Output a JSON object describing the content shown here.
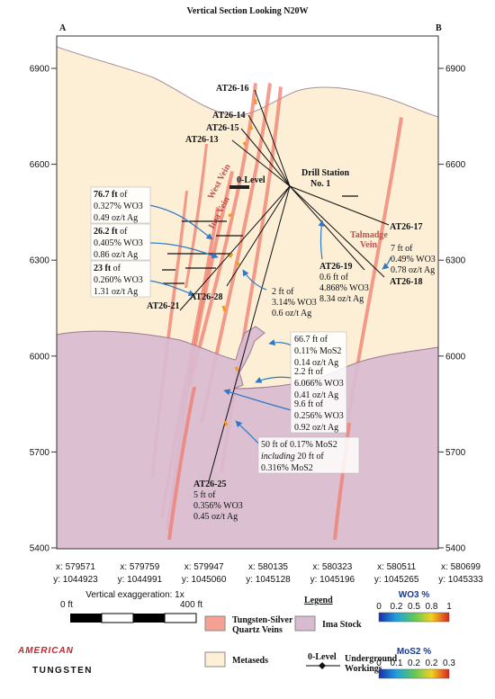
{
  "title": "Vertical Section Looking N20W",
  "section_ends": {
    "left": "A",
    "right": "B"
  },
  "elevation_ticks": [
    6900,
    6600,
    6300,
    6000,
    5700,
    5400
  ],
  "coordinates": [
    {
      "x": "x: 579571",
      "y": "y: 1044923"
    },
    {
      "x": "x: 579759",
      "y": "y: 1044991"
    },
    {
      "x": "x: 579947",
      "y": "y: 1045060"
    },
    {
      "x": "x: 580135",
      "y": "y: 1045128"
    },
    {
      "x": "x: 580323",
      "y": "y: 1045196"
    },
    {
      "x": "x: 580511",
      "y": "y: 1045265"
    },
    {
      "x": "x: 580699",
      "y": "y: 1045333"
    }
  ],
  "drill_holes": [
    "AT26-16",
    "AT26-14",
    "AT26-15",
    "AT26-13",
    "AT26-17",
    "AT26-18",
    "AT26-19",
    "AT26-28",
    "AT26-21",
    "AT26-25"
  ],
  "drill_station": [
    "Drill Station",
    "No. 1"
  ],
  "level_label": "0-Level",
  "vein_labels": [
    "West Vein",
    "Ima Vein",
    "Talmadge",
    "Vein"
  ],
  "intercepts": [
    [
      "76.7 ft",
      " of",
      "0.327% WO3",
      "0.49 oz/t Ag"
    ],
    [
      "26.2 ft",
      " of",
      "0.405% WO3",
      "0.86 oz/t Ag"
    ],
    [
      "23 ft",
      " of",
      "0.260% WO3",
      "1.31 oz/t Ag"
    ],
    [
      "2 ft of",
      "3.14% WO3",
      "0.6 oz/t Ag"
    ],
    [
      "7 ft of",
      "0.49% WO3",
      "0.78 oz/t Ag"
    ],
    [
      "0.6 ft of",
      "4.868% WO3",
      "8.34 oz/t Ag"
    ],
    [
      "66.7 ft of",
      "0.11% MoS2",
      "0.14 oz/t Ag"
    ],
    [
      "2.2 ft of",
      "6.066% WO3",
      "0.41 oz/t Ag"
    ],
    [
      "9.6 ft of",
      "0.256% WO3",
      "0.92 oz/t Ag"
    ],
    [
      "50 ft of 0.17% MoS2",
      "including",
      " 20 ft of",
      "0.316% MoS2"
    ],
    [
      "5 ft of",
      "0.356% WO3",
      "0.45 oz/t Ag"
    ]
  ],
  "scale": {
    "note": "Vertical exaggeration: 1x",
    "start": "0 ft",
    "end": "400 ft"
  },
  "logo": [
    "AMERICAN",
    "TUNGSTEN"
  ],
  "legend": {
    "title": "Legend",
    "items": [
      [
        "Tungsten-Silver",
        "Quartz Veins"
      ],
      [
        "Ima Stock"
      ],
      [
        "Metaseds"
      ],
      [
        "0-Level"
      ],
      [
        "Underground",
        "Workings"
      ]
    ]
  },
  "colorbars": [
    {
      "title": "WO3 %",
      "ticks": [
        "0",
        "0.2",
        "0.5",
        "0.8",
        "1"
      ]
    },
    {
      "title": "MoS2 %",
      "ticks": [
        "0",
        "0.1",
        "0.2",
        "0.2",
        "0.3"
      ]
    }
  ]
}
